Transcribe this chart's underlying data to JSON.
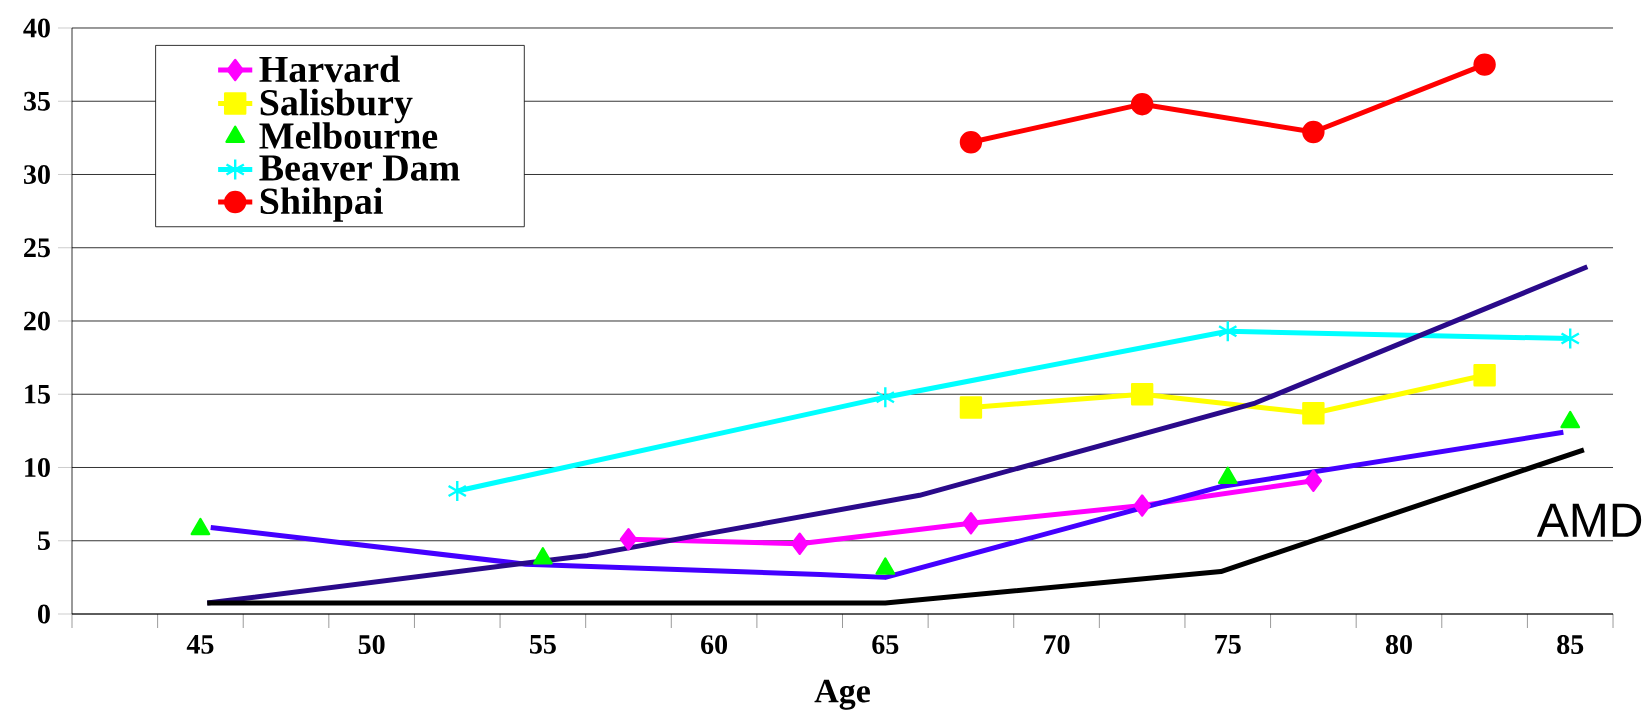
{
  "chart_data": {
    "type": "line",
    "xlabel": "Age",
    "xlim": [
      41.25,
      86.25
    ],
    "xticks": [
      {
        "value": 41.25,
        "label": null
      },
      {
        "value": 43.75,
        "label": null
      },
      45,
      {
        "value": 46.25,
        "label": null
      },
      {
        "value": 48.75,
        "label": null
      },
      50,
      {
        "value": 51.25,
        "label": null
      },
      {
        "value": 53.75,
        "label": null
      },
      55,
      {
        "value": 56.25,
        "label": null
      },
      {
        "value": 58.75,
        "label": null
      },
      60,
      {
        "value": 61.25,
        "label": null
      },
      {
        "value": 63.75,
        "label": null
      },
      65,
      {
        "value": 66.25,
        "label": null
      },
      {
        "value": 68.75,
        "label": null
      },
      70,
      {
        "value": 71.25,
        "label": null
      },
      {
        "value": 73.75,
        "label": null
      },
      75,
      {
        "value": 76.25,
        "label": null
      },
      {
        "value": 78.75,
        "label": null
      },
      80,
      {
        "value": 81.25,
        "label": null
      },
      {
        "value": 83.75,
        "label": null
      },
      85,
      {
        "value": 86.25,
        "label": null
      }
    ],
    "ylim": [
      0,
      40
    ],
    "yticks": [
      0,
      5,
      10,
      15,
      20,
      25,
      30,
      35,
      40
    ],
    "grid": "y",
    "legend": "top left",
    "line_style": "solid",
    "annotations": [
      "AMD"
    ],
    "series": [
      {
        "name": "Harvard",
        "color": "#ff00ff",
        "marker": "diamond",
        "x": [
          57.5,
          62.5,
          67.5,
          72.5,
          77.5
        ],
        "values": [
          5.1,
          4.8,
          6.2,
          7.4,
          9.1
        ]
      },
      {
        "name": "Salisbury",
        "color": "#ffff00",
        "marker": "square",
        "x": [
          67.5,
          72.5,
          77.5,
          82.5
        ],
        "values": [
          14.1,
          15.0,
          13.7,
          16.3
        ]
      },
      {
        "name": "Melbourne",
        "type": "scatter",
        "color": "#00ff00",
        "marker": "triangle",
        "x": [
          45,
          55,
          65,
          75,
          85
        ],
        "values": [
          5.8,
          3.8,
          3.1,
          9.3,
          13.1
        ]
      },
      {
        "name": "Beaver Dam",
        "color": "#00ffff",
        "marker": "cross",
        "x": [
          52.5,
          65,
          75,
          85
        ],
        "values": [
          8.4,
          14.8,
          19.3,
          18.8
        ]
      },
      {
        "name": "Shihpai",
        "color": "#ff0000",
        "marker": "circle",
        "x": [
          67.5,
          72.5,
          77.5,
          82.5
        ],
        "values": [
          32.2,
          34.8,
          32.9,
          37.5
        ]
      },
      {
        "color": "#4400ff",
        "marker": "none",
        "x": [
          45.3,
          54.5,
          63.1,
          65,
          74.8,
          84.8
        ],
        "values": [
          5.9,
          3.4,
          2.7,
          2.5,
          8.7,
          12.4
        ]
      },
      {
        "color": "#2a0a8a",
        "marker": "none",
        "x": [
          45.2,
          56.3,
          66.0,
          75.8,
          85.5
        ],
        "values": [
          0.75,
          4.0,
          8.1,
          14.4,
          23.7
        ]
      },
      {
        "color": "#000000",
        "marker": "none",
        "x": [
          45.2,
          65.0,
          74.8,
          85.4
        ],
        "values": [
          0.75,
          0.75,
          2.9,
          11.2
        ]
      }
    ]
  }
}
